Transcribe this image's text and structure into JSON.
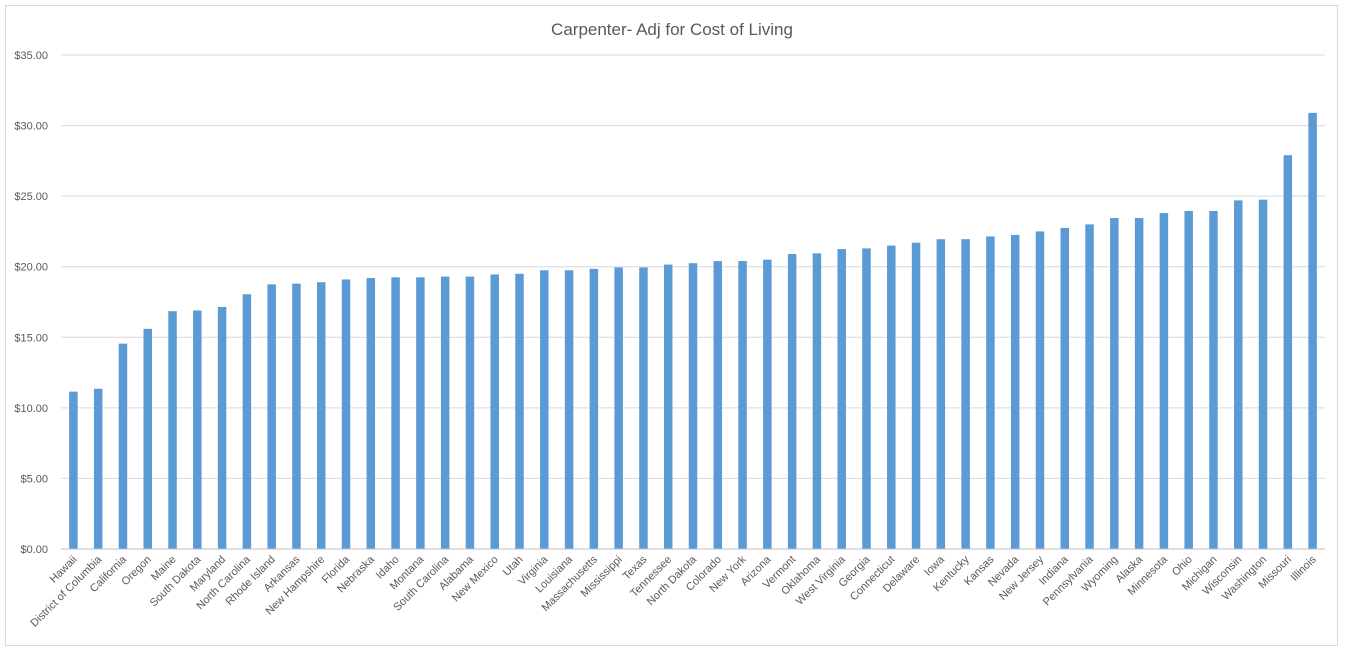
{
  "chart_data": {
    "type": "bar",
    "title": "Carpenter- Adj for Cost of Living",
    "xlabel": "",
    "ylabel": "",
    "ylim": [
      0,
      35
    ],
    "yticks": [
      0,
      5,
      10,
      15,
      20,
      25,
      30,
      35
    ],
    "ytick_labels": [
      "$0.00",
      "$5.00",
      "$10.00",
      "$15.00",
      "$20.00",
      "$25.00",
      "$30.00",
      "$35.00"
    ],
    "grid": true,
    "legend": "none",
    "bar_color": "#5b9bd5",
    "categories": [
      "Hawaii",
      "District of Columbia",
      "California",
      "Oregon",
      "Maine",
      "South Dakota",
      "Maryland",
      "North Carolina",
      "Rhode Island",
      "Arkansas",
      "New Hampshire",
      "Florida",
      "Nebraska",
      "Idaho",
      "Montana",
      "South Carolina",
      "Alabama",
      "New Mexico",
      "Utah",
      "Virginia",
      "Louisiana",
      "Massachusetts",
      "Mississippi",
      "Texas",
      "Tennessee",
      "North Dakota",
      "Colorado",
      "New York",
      "Arizona",
      "Vermont",
      "Oklahoma",
      "West Virginia",
      "Georgia",
      "Connecticut",
      "Delaware",
      "Iowa",
      "Kentucky",
      "Kansas",
      "Nevada",
      "New Jersey",
      "Indiana",
      "Pennsylvania",
      "Wyoming",
      "Alaska",
      "Minnesota",
      "Ohio",
      "Michigan",
      "Wisconsin",
      "Washington",
      "Missouri",
      "Illinois"
    ],
    "values": [
      11.15,
      11.35,
      14.55,
      15.6,
      16.85,
      16.9,
      17.15,
      18.05,
      18.75,
      18.8,
      18.9,
      19.1,
      19.2,
      19.25,
      19.25,
      19.3,
      19.3,
      19.45,
      19.5,
      19.75,
      19.75,
      19.85,
      19.95,
      19.95,
      20.15,
      20.25,
      20.4,
      20.4,
      20.5,
      20.9,
      20.95,
      21.25,
      21.3,
      21.5,
      21.7,
      21.95,
      21.95,
      22.15,
      22.25,
      22.5,
      22.75,
      23.0,
      23.45,
      23.45,
      23.8,
      23.95,
      23.95,
      24.7,
      24.75,
      27.9,
      30.9
    ]
  }
}
